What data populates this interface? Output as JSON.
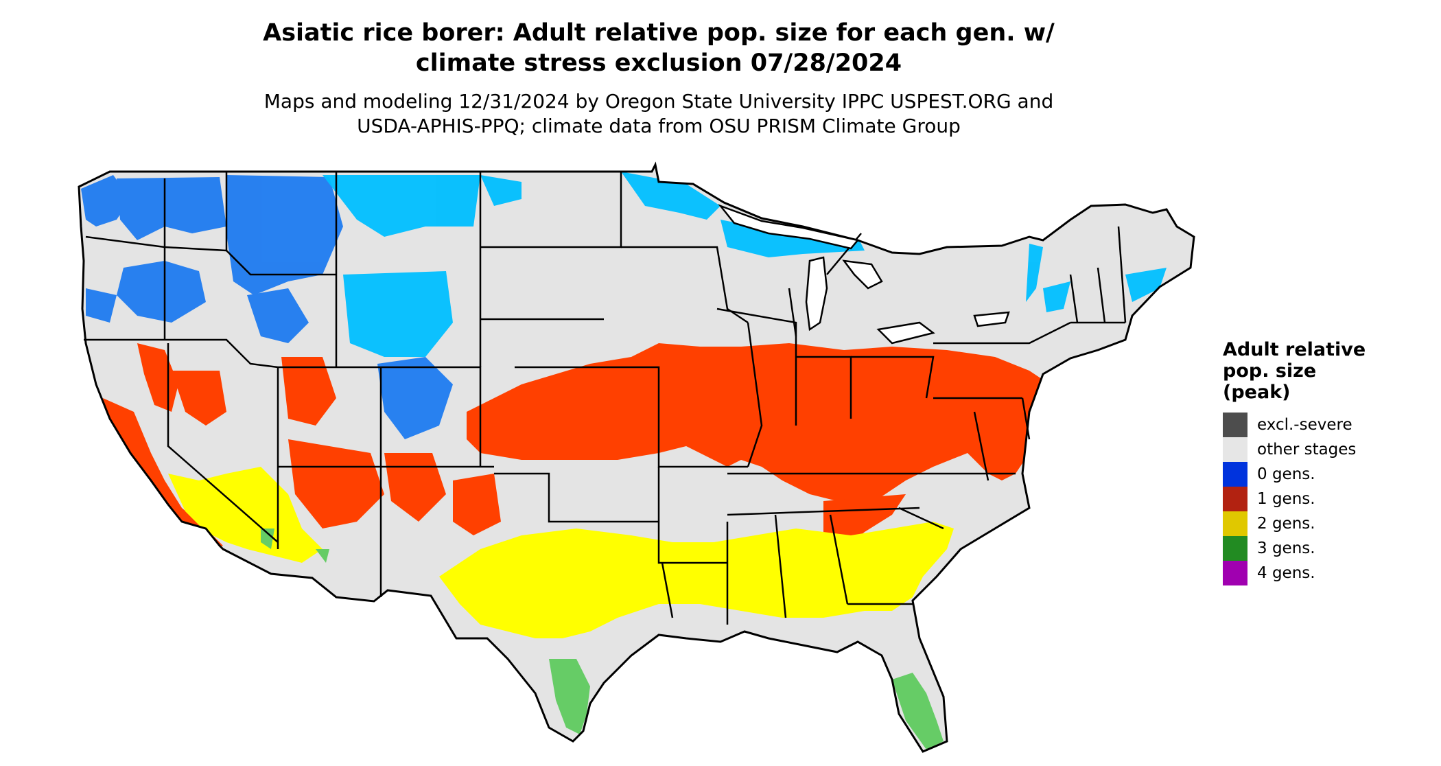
{
  "title_line1": "Asiatic rice borer: Adult relative pop. size for each gen. w/",
  "title_line2": "climate stress exclusion 07/28/2024",
  "subtitle_line1": "Maps and modeling 12/31/2024 by Oregon State University IPPC USPEST.ORG and",
  "subtitle_line2": "USDA-APHIS-PPQ; climate data from OSU PRISM Climate Group",
  "legend": {
    "title_line1": "Adult relative",
    "title_line2": "pop. size",
    "title_line3": "(peak)",
    "items": [
      {
        "label": "excl.-severe",
        "color": "#4d4d4d"
      },
      {
        "label": "other stages",
        "color": "#e6e6e6"
      },
      {
        "label": "0 gens.",
        "color": "#0033dd"
      },
      {
        "label": "1 gens.",
        "color": "#b22211"
      },
      {
        "label": "2 gens.",
        "color": "#e0c800"
      },
      {
        "label": "3 gens.",
        "color": "#228b22"
      },
      {
        "label": "4 gens.",
        "color": "#a000b0"
      }
    ]
  },
  "map_colors": {
    "background_land": "#e4e4e4",
    "cold_blue": "#1e7bf0",
    "light_blue": "#00bfff",
    "one_gen_red": "#ff4000",
    "two_gen_yellow": "#ffff00",
    "three_gen_green": "#66cc66",
    "borders": "#000000"
  }
}
